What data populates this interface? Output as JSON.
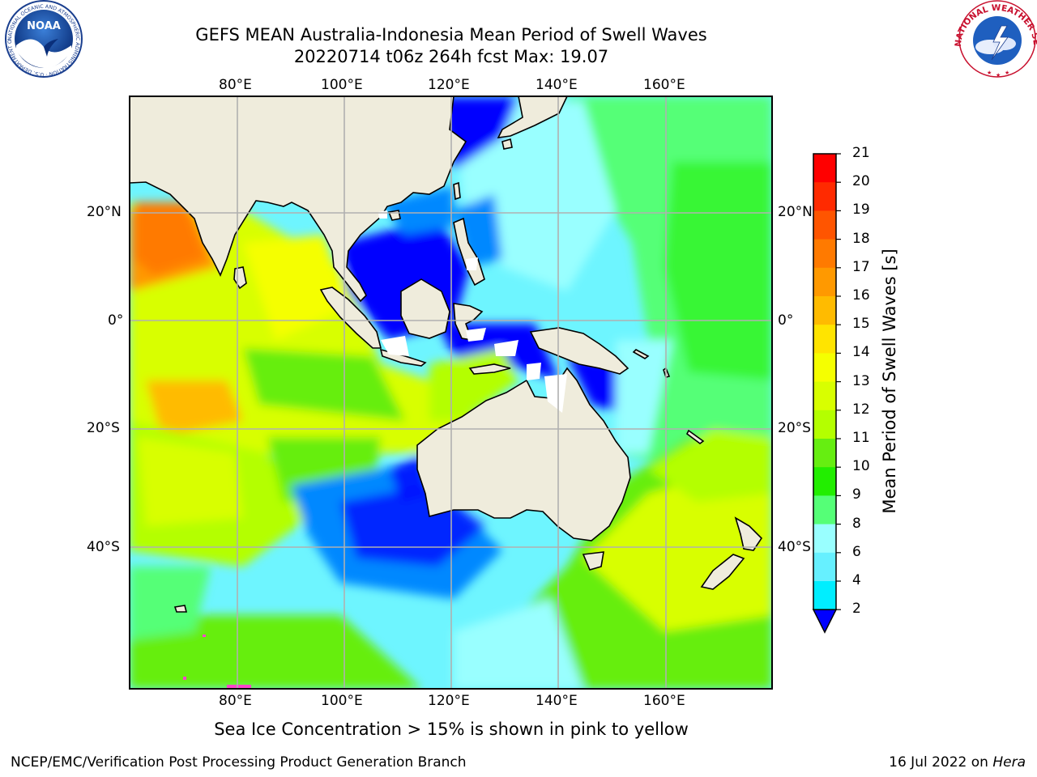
{
  "title": {
    "line1": "GEFS MEAN Australia-Indonesia Mean Period of Swell Waves",
    "line2": "20220714 t06z 264h fcst   Max: 19.07"
  },
  "map": {
    "lon_labels": [
      "80°E",
      "100°E",
      "120°E",
      "140°E",
      "160°E"
    ],
    "lat_labels": [
      "20°N",
      "0°",
      "20°S",
      "40°S"
    ],
    "lon_range": [
      60,
      180
    ],
    "lat_range": [
      -60,
      40
    ]
  },
  "colorbar": {
    "label": "Mean Period of Swell Waves [s]",
    "ticks": [
      "21",
      "20",
      "19",
      "18",
      "17",
      "16",
      "15",
      "14",
      "13",
      "12",
      "11",
      "10",
      "9",
      "8",
      "6",
      "4",
      "2"
    ],
    "colors": [
      "#ff0000",
      "#ff2a00",
      "#ff5500",
      "#ff7a00",
      "#ff9900",
      "#ffbb00",
      "#ffe400",
      "#f5ff00",
      "#d8ff00",
      "#b4ff00",
      "#66ee11",
      "#22ee00",
      "#55ff77",
      "#99ffff",
      "#66f0ff",
      "#00eeff",
      "#0088ff",
      "#0000ff"
    ]
  },
  "caption": "Sea Ice Concentration > 15% is shown in pink to yellow",
  "footer": {
    "left": "NCEP/EMC/Verification Post Processing Product Generation Branch",
    "date": "16 Jul 2022 on ",
    "host": "Hera"
  },
  "logos": {
    "noaa": "NOAA",
    "noaa_ring": "NATIONAL OCEANIC AND ATMOSPHERIC ADMINISTRATION · U.S. DEPARTMENT OF COMMERCE ·",
    "nws_ring": "NATIONAL WEATHER SERVICE"
  }
}
